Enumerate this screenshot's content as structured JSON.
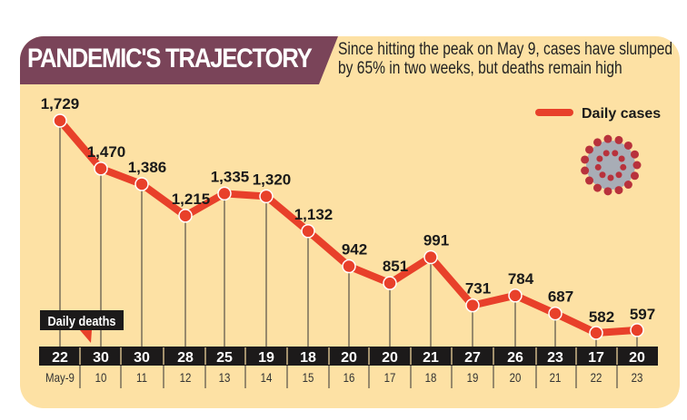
{
  "header": {
    "title": "PANDEMIC'S TRAJECTORY",
    "subtitle_line1": "Since hitting the peak on May 9, cases have slumped",
    "subtitle_line2": "by 65% in two weeks, but deaths remain high"
  },
  "chart_data": {
    "type": "line",
    "x": [
      "May-9",
      "10",
      "11",
      "12",
      "13",
      "14",
      "15",
      "16",
      "17",
      "18",
      "19",
      "20",
      "21",
      "22",
      "23"
    ],
    "series": [
      {
        "name": "Daily cases",
        "values": [
          1729,
          1470,
          1386,
          1215,
          1335,
          1320,
          1132,
          942,
          851,
          991,
          731,
          784,
          687,
          582,
          597
        ],
        "labels": [
          "1,729",
          "1,470",
          "1,386",
          "1,215",
          "1,335",
          "1,320",
          "1,132",
          "942",
          "851",
          "991",
          "731",
          "784",
          "687",
          "582",
          "597"
        ]
      }
    ],
    "deaths": {
      "name": "Daily deaths",
      "values": [
        22,
        30,
        30,
        28,
        25,
        19,
        18,
        20,
        20,
        21,
        27,
        26,
        23,
        17,
        20
      ]
    },
    "legend": "top-right",
    "grid": false
  },
  "colors": {
    "line": "#e8402a",
    "header": "#7a4459",
    "panel": "#fde1a4",
    "bar": "#1c1a1a"
  },
  "icons": {
    "virus": "coronavirus-illustration"
  }
}
